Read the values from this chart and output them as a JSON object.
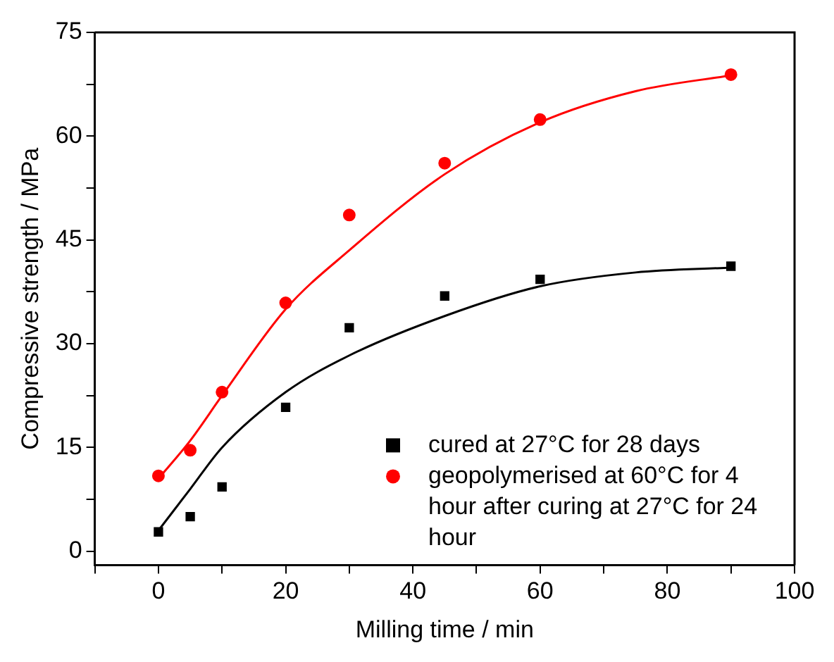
{
  "chart_data": {
    "type": "scatter",
    "xlabel": "Milling time / min",
    "ylabel": "Compressive strength / MPa",
    "xlim": [
      -10,
      100
    ],
    "ylim": [
      -2,
      75
    ],
    "xticks": [
      {
        "value": -10,
        "label": null
      },
      0,
      {
        "value": 10,
        "label": null
      },
      20,
      {
        "value": 30,
        "label": null
      },
      40,
      {
        "value": 50,
        "label": null
      },
      60,
      {
        "value": 70,
        "label": null
      },
      80,
      {
        "value": 90,
        "label": null
      },
      100
    ],
    "yticks": [
      0,
      {
        "value": 7.5,
        "label": null
      },
      15,
      {
        "value": 22.5,
        "label": null
      },
      30,
      {
        "value": 37.5,
        "label": null
      },
      45,
      {
        "value": 52.5,
        "label": null
      },
      60,
      {
        "value": 67.5,
        "label": null
      },
      75
    ],
    "grid": false,
    "legend": "bottom right",
    "series": [
      {
        "name": "cured at 27°C for 28 days",
        "color": "#000000",
        "marker": "square",
        "x": [
          0,
          5,
          10,
          20,
          30,
          45,
          60,
          90
        ],
        "values": [
          2.8,
          5,
          9.3,
          20.8,
          32.3,
          36.9,
          39.3,
          41.2
        ]
      },
      {
        "name": "geopolymerised at 60°C for 4 hour after curing at 27°C for 24 hour",
        "color": "#ff0000",
        "marker": "circle",
        "x": [
          0,
          5,
          10,
          20,
          30,
          45,
          60,
          90
        ],
        "values": [
          10.9,
          14.6,
          23,
          35.9,
          48.6,
          56.1,
          62.4,
          68.9
        ]
      },
      {
        "type": "line",
        "color": "#000000",
        "marker": "none",
        "x": [
          0,
          5,
          10,
          20,
          30,
          45,
          60,
          75,
          90
        ],
        "values": [
          3,
          9,
          15,
          23,
          28.3,
          34,
          38.3,
          40.3,
          41
        ]
      },
      {
        "type": "line",
        "color": "#ff0000",
        "marker": "none",
        "x": [
          0,
          5,
          10,
          20,
          30,
          45,
          60,
          75,
          90
        ],
        "values": [
          10.5,
          16,
          22.5,
          35,
          43.5,
          54.5,
          62,
          66.5,
          68.8
        ]
      }
    ]
  }
}
